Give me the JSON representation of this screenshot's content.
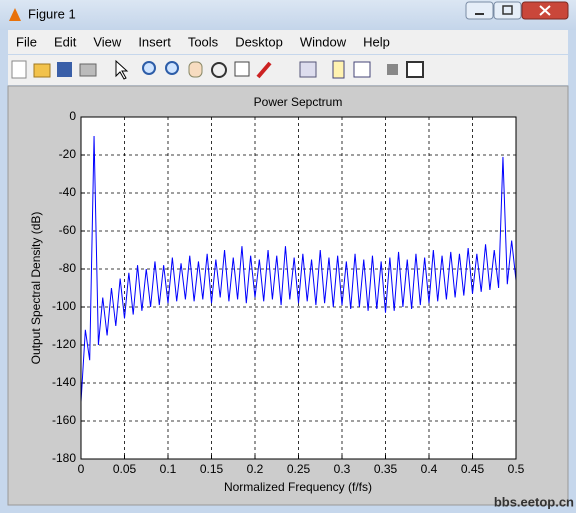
{
  "window": {
    "title": "Figure 1"
  },
  "menu": [
    "File",
    "Edit",
    "View",
    "Insert",
    "Tools",
    "Desktop",
    "Window",
    "Help"
  ],
  "watermark": "bbs.eetop.cn",
  "chart_data": {
    "type": "line",
    "title": "Power Sepctrum",
    "x_label": "Normalized Frequency (f/fs)",
    "y_label": "Output Spectral Density (dB)",
    "color": "#0000ff",
    "grid": true,
    "xlim": [
      0,
      0.5
    ],
    "ylim": [
      -180,
      0
    ],
    "xticks": [
      0,
      0.05,
      0.1,
      0.15,
      0.2,
      0.25,
      0.3,
      0.35,
      0.4,
      0.45,
      0.5
    ],
    "yticks": [
      -180,
      -160,
      -140,
      -120,
      -100,
      -80,
      -60,
      -40,
      -20,
      0
    ],
    "x": [
      0,
      0.005,
      0.01,
      0.015,
      0.02,
      0.025,
      0.03,
      0.035,
      0.04,
      0.045,
      0.05,
      0.055,
      0.06,
      0.065,
      0.07,
      0.075,
      0.08,
      0.085,
      0.09,
      0.095,
      0.1,
      0.105,
      0.11,
      0.115,
      0.12,
      0.125,
      0.13,
      0.135,
      0.14,
      0.145,
      0.15,
      0.155,
      0.16,
      0.165,
      0.17,
      0.175,
      0.18,
      0.185,
      0.19,
      0.195,
      0.2,
      0.205,
      0.21,
      0.215,
      0.22,
      0.225,
      0.23,
      0.235,
      0.24,
      0.245,
      0.25,
      0.255,
      0.26,
      0.265,
      0.27,
      0.275,
      0.28,
      0.285,
      0.29,
      0.295,
      0.3,
      0.305,
      0.31,
      0.315,
      0.32,
      0.325,
      0.33,
      0.335,
      0.34,
      0.345,
      0.35,
      0.355,
      0.36,
      0.365,
      0.37,
      0.375,
      0.38,
      0.385,
      0.39,
      0.395,
      0.4,
      0.405,
      0.41,
      0.415,
      0.42,
      0.425,
      0.43,
      0.435,
      0.44,
      0.445,
      0.45,
      0.455,
      0.46,
      0.465,
      0.47,
      0.475,
      0.48,
      0.485,
      0.49,
      0.495,
      0.5
    ],
    "values": [
      -150,
      -112,
      -128,
      -10,
      -120,
      -95,
      -115,
      -90,
      -110,
      -85,
      -106,
      -82,
      -104,
      -78,
      -102,
      -80,
      -100,
      -76,
      -99,
      -78,
      -98,
      -74,
      -97,
      -77,
      -96,
      -73,
      -97,
      -76,
      -96,
      -72,
      -98,
      -75,
      -95,
      -70,
      -97,
      -74,
      -96,
      -68,
      -98,
      -73,
      -95,
      -75,
      -97,
      -70,
      -96,
      -73,
      -99,
      -68,
      -96,
      -74,
      -98,
      -72,
      -97,
      -75,
      -99,
      -70,
      -98,
      -74,
      -100,
      -73,
      -99,
      -76,
      -101,
      -72,
      -100,
      -75,
      -102,
      -73,
      -101,
      -76,
      -103,
      -74,
      -102,
      -71,
      -100,
      -75,
      -101,
      -72,
      -99,
      -74,
      -98,
      -70,
      -97,
      -73,
      -96,
      -71,
      -95,
      -72,
      -94,
      -69,
      -93,
      -72,
      -92,
      -67,
      -91,
      -70,
      -90,
      -21,
      -88,
      -65,
      -86
    ]
  }
}
